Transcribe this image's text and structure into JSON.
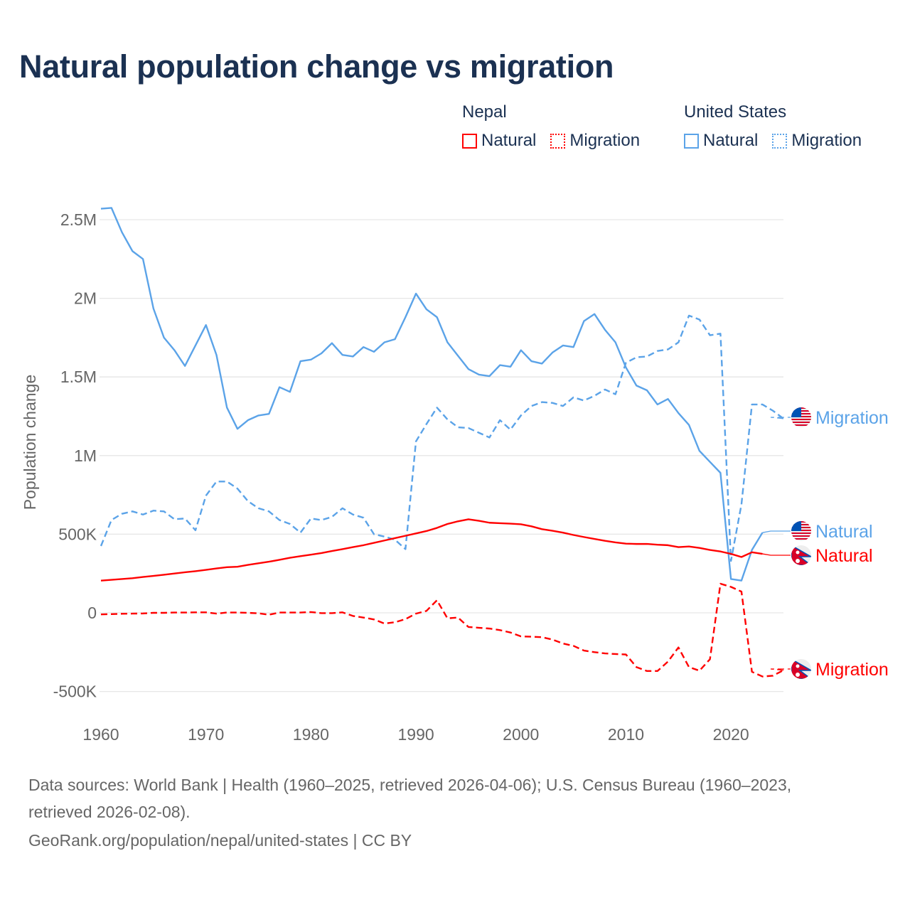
{
  "title": "Natural population change vs migration",
  "legend": {
    "groups": [
      {
        "name": "Nepal",
        "items": [
          {
            "label": "Natural",
            "style": "solid"
          },
          {
            "label": "Migration",
            "style": "dotted"
          }
        ],
        "color": "#ff0000"
      },
      {
        "name": "United States",
        "items": [
          {
            "label": "Natural",
            "style": "solid"
          },
          {
            "label": "Migration",
            "style": "dotted"
          }
        ],
        "color": "#5ba3e8"
      }
    ]
  },
  "footer": {
    "line1": "Data sources: World Bank | Health (1960–2025, retrieved 2026-04-06); U.S. Census Bureau (1960–2023,",
    "line2": "retrieved 2026-02-08).",
    "line3": "GeoRank.org/population/nepal/united-states | CC BY"
  },
  "chart_data": {
    "type": "line",
    "title": "Natural population change vs migration",
    "xlabel": "",
    "ylabel": "Population change",
    "xlim": [
      1960,
      2025
    ],
    "ylim": [
      -500000,
      2500000
    ],
    "xticks": [
      {
        "v": 1960,
        "label": "1960"
      },
      {
        "v": 1970,
        "label": "1970"
      },
      {
        "v": 1980,
        "label": "1980"
      },
      {
        "v": 1990,
        "label": "1990"
      },
      {
        "v": 2000,
        "label": "2000"
      },
      {
        "v": 2010,
        "label": "2010"
      },
      {
        "v": 2020,
        "label": "2020"
      }
    ],
    "yticks": [
      {
        "v": 2500000,
        "label": "2.5M"
      },
      {
        "v": 2000000,
        "label": "2M"
      },
      {
        "v": 1500000,
        "label": "1.5M"
      },
      {
        "v": 1000000,
        "label": "1M"
      },
      {
        "v": 500000,
        "label": "500K"
      },
      {
        "v": 0,
        "label": "0"
      },
      {
        "v": -500000,
        "label": "-500K"
      }
    ],
    "grid": true,
    "series": [
      {
        "name": "United States Natural",
        "label": "Natural",
        "country": "us",
        "color": "#5ba3e8",
        "dash": false,
        "start": 1960,
        "values_k": [
          2570,
          2575,
          2420,
          2300,
          2250,
          1935,
          1750,
          1670,
          1570,
          1700,
          1830,
          1640,
          1305,
          1170,
          1225,
          1255,
          1265,
          1435,
          1405,
          1600,
          1610,
          1650,
          1715,
          1640,
          1630,
          1690,
          1660,
          1720,
          1740,
          1880,
          2030,
          1930,
          1880,
          1720,
          1635,
          1550,
          1515,
          1505,
          1575,
          1565,
          1670,
          1600,
          1585,
          1655,
          1700,
          1690,
          1855,
          1900,
          1800,
          1720,
          1560,
          1445,
          1415,
          1325,
          1360,
          1270,
          1195,
          1030,
          960,
          890,
          215,
          205,
          400,
          510
        ]
      },
      {
        "name": "United States Migration",
        "label": "Migration",
        "country": "us",
        "color": "#5ba3e8",
        "dash": true,
        "start": 1960,
        "values_k": [
          425,
          590,
          630,
          645,
          625,
          650,
          645,
          595,
          600,
          525,
          745,
          835,
          835,
          790,
          710,
          665,
          645,
          590,
          565,
          510,
          600,
          590,
          610,
          665,
          625,
          605,
          500,
          485,
          465,
          405,
          1090,
          1200,
          1305,
          1230,
          1180,
          1175,
          1145,
          1115,
          1225,
          1165,
          1255,
          1315,
          1340,
          1335,
          1315,
          1370,
          1350,
          1380,
          1420,
          1390,
          1590,
          1625,
          1630,
          1665,
          1675,
          1720,
          1890,
          1865,
          1765,
          1775,
          330,
          690,
          1325,
          1325,
          1285,
          1235
        ]
      },
      {
        "name": "Nepal Natural",
        "label": "Natural",
        "country": "np",
        "color": "#ff0000",
        "dash": false,
        "start": 1960,
        "values_k": [
          205,
          210,
          215,
          220,
          228,
          235,
          242,
          250,
          258,
          265,
          273,
          282,
          290,
          293,
          305,
          315,
          325,
          337,
          350,
          360,
          370,
          380,
          393,
          405,
          418,
          430,
          445,
          460,
          475,
          490,
          505,
          520,
          540,
          565,
          582,
          595,
          585,
          573,
          570,
          567,
          563,
          550,
          532,
          522,
          510,
          495,
          482,
          470,
          458,
          448,
          440,
          438,
          438,
          433,
          430,
          418,
          422,
          413,
          400,
          390,
          375,
          355,
          385,
          375
        ]
      },
      {
        "name": "Nepal Migration",
        "label": "Migration",
        "country": "np",
        "color": "#ff0000",
        "dash": true,
        "start": 1960,
        "values_k": [
          -10,
          -8,
          -6,
          -5,
          -4,
          0,
          0,
          2,
          2,
          3,
          3,
          -5,
          2,
          2,
          0,
          -3,
          -12,
          2,
          2,
          2,
          5,
          -2,
          -2,
          3,
          -20,
          -30,
          -42,
          -68,
          -60,
          -40,
          -5,
          12,
          80,
          -35,
          -30,
          -90,
          -95,
          -100,
          -110,
          -125,
          -150,
          -152,
          -155,
          -170,
          -195,
          -210,
          -240,
          -250,
          -258,
          -262,
          -265,
          -345,
          -370,
          -370,
          -310,
          -220,
          -345,
          -368,
          -295,
          185,
          165,
          135,
          -375,
          -405,
          -400,
          -365
        ]
      }
    ]
  }
}
